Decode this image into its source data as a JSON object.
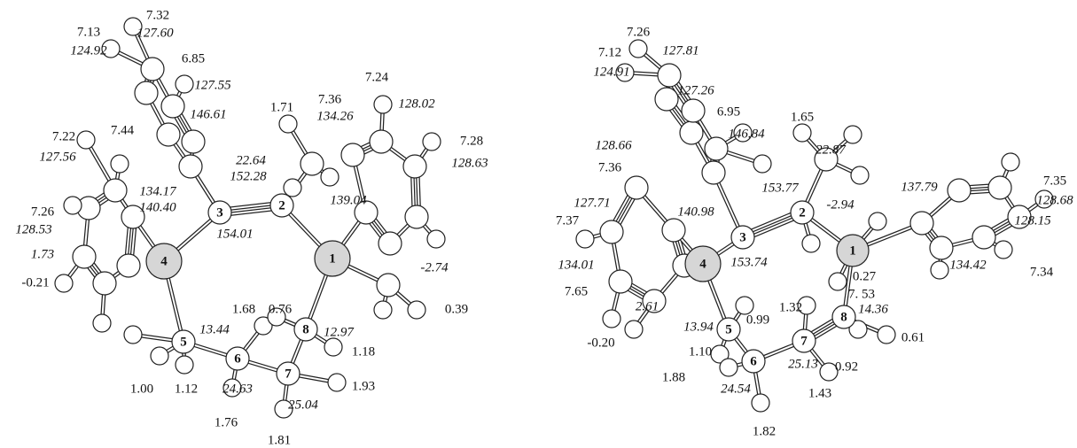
{
  "left_molecule": {
    "atoms": [
      "1",
      "2",
      "3",
      "4",
      "5",
      "6",
      "7",
      "8"
    ],
    "labels": [
      "7.32",
      "7.13",
      "127.60",
      "124.92",
      "6.85",
      "127.55",
      "1.71",
      "7.36",
      "7.24",
      "134.26",
      "128.02",
      "7.22",
      "7.44",
      "146.61",
      "127.56",
      "22.64",
      "152.28",
      "7.28",
      "128.63",
      "134.17",
      "139.04",
      "140.40",
      "7.26",
      "128.53",
      "154.01",
      "1.73",
      "-0.21",
      "-2.74",
      "0.39",
      "1.68",
      "0.76",
      "13.44",
      "12.97",
      "1.18",
      "1.00",
      "1.12",
      "24.63",
      "1.93",
      "25.04",
      "1.76",
      "1.81"
    ]
  },
  "right_molecule": {
    "atoms": [
      "1",
      "2",
      "3",
      "4",
      "5",
      "6",
      "7",
      "8"
    ],
    "labels": [
      "7.26",
      "7.12",
      "127.81",
      "124.91",
      "127.26",
      "6.95",
      "1.65",
      "146.84",
      "128.66",
      "22.87",
      "7.36",
      "153.77",
      "137.79",
      "7.35",
      "128.68",
      "127.71",
      "-2.94",
      "140.98",
      "128.15",
      "7.37",
      "153.74",
      "134.01",
      "134.42",
      "7.34",
      "0.27",
      "7.65",
      "7. 53",
      "2.61",
      "1.32",
      "0.99",
      "14.36",
      "13.94",
      "0.61",
      "-0.20",
      "1.10",
      "25.13",
      "0.92",
      "1.88",
      "24.54",
      "1.43",
      "1.82"
    ]
  }
}
